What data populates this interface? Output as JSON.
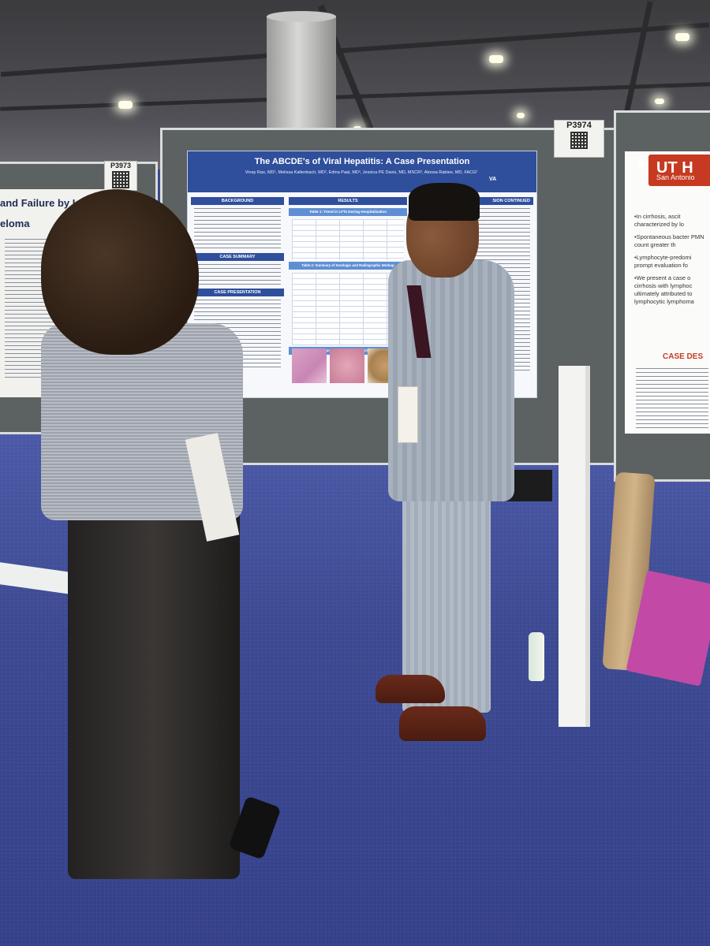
{
  "booths": {
    "left_number": "P3973",
    "center_number": "P3974"
  },
  "main_poster": {
    "title": "The ABCDE's of Viral Hepatitis: A Case Presentation",
    "authors": "Vinay Rao, MD¹, Melissa Kaltenbach, MD², Edina Paal, MD³, Jessica PE Davis, MD, MSCR², Atoosa Rabiee, MD, FACG²",
    "logo_text": "VA",
    "sections": {
      "background": "BACKGROUND",
      "case_summary": "CASE SUMMARY",
      "case_presentation": "CASE PRESENTATION",
      "results": "RESULTS",
      "table1": "Table 1: Trend in LFTs During Hospitalization",
      "table2": "Table 2: Summary of Serologic and Radiographic Workup",
      "figure1": "Figure 1: Liver Biopsy Sections",
      "continued": "SION CONTINUED"
    }
  },
  "left_poster": {
    "title_fragment": "and Failure by IgA Kapp",
    "subtitle_fragment": "eloma"
  },
  "right_poster": {
    "logo": "UT H",
    "logo_sub": "San Antonio",
    "bullets": [
      "•In cirrhosis, ascit characterized by lo",
      "•Spontaneous bacter PMN count greater th",
      "•Lymphocyte-predomi prompt evaluation fo",
      "•We present a case o cirrhosis with lymphoc ultimately attributed to lymphocytic lymphoma"
    ],
    "case_heading": "CASE DES"
  },
  "colors": {
    "poster_header": "#2f4f9c",
    "board": "#5c6261",
    "carpet": "#3d4a92",
    "utsa_red": "#c53a21"
  }
}
